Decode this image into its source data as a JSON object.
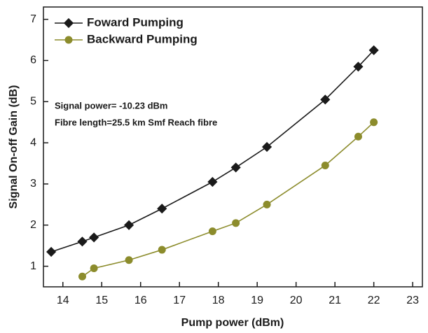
{
  "chart_data": {
    "type": "line",
    "xlabel": "Pump power (dBm)",
    "ylabel": "Signal On-off Gain (dB)",
    "annotations": [
      "Signal power= -10.23 dBm",
      "Fibre length=25.5 km Smf Reach fibre"
    ],
    "series": [
      {
        "name": "Foward Pumping",
        "color": "#1a1a1a",
        "marker": "diamond",
        "x": [
          13.7,
          14.5,
          14.8,
          15.7,
          16.55,
          17.85,
          18.45,
          19.25,
          20.75,
          21.6,
          22.0
        ],
        "values": [
          1.35,
          1.6,
          1.7,
          2.0,
          2.4,
          3.05,
          3.4,
          3.9,
          5.05,
          5.85,
          6.25
        ]
      },
      {
        "name": "Backward Pumping",
        "color": "#8c8c2c",
        "marker": "circle",
        "x": [
          14.5,
          14.8,
          15.7,
          16.55,
          17.85,
          18.45,
          19.25,
          20.75,
          21.6,
          22.0
        ],
        "values": [
          0.75,
          0.95,
          1.15,
          1.4,
          1.85,
          2.05,
          2.5,
          3.45,
          4.15,
          4.5
        ]
      }
    ],
    "xlim": [
      13.5,
      23.25
    ],
    "ylim": [
      0.5,
      7.3
    ],
    "xticks": [
      14,
      15,
      16,
      17,
      18,
      19,
      20,
      21,
      22,
      23
    ],
    "yticks": [
      1,
      2,
      3,
      4,
      5,
      6,
      7
    ],
    "grid": false,
    "legend": "upper left"
  }
}
